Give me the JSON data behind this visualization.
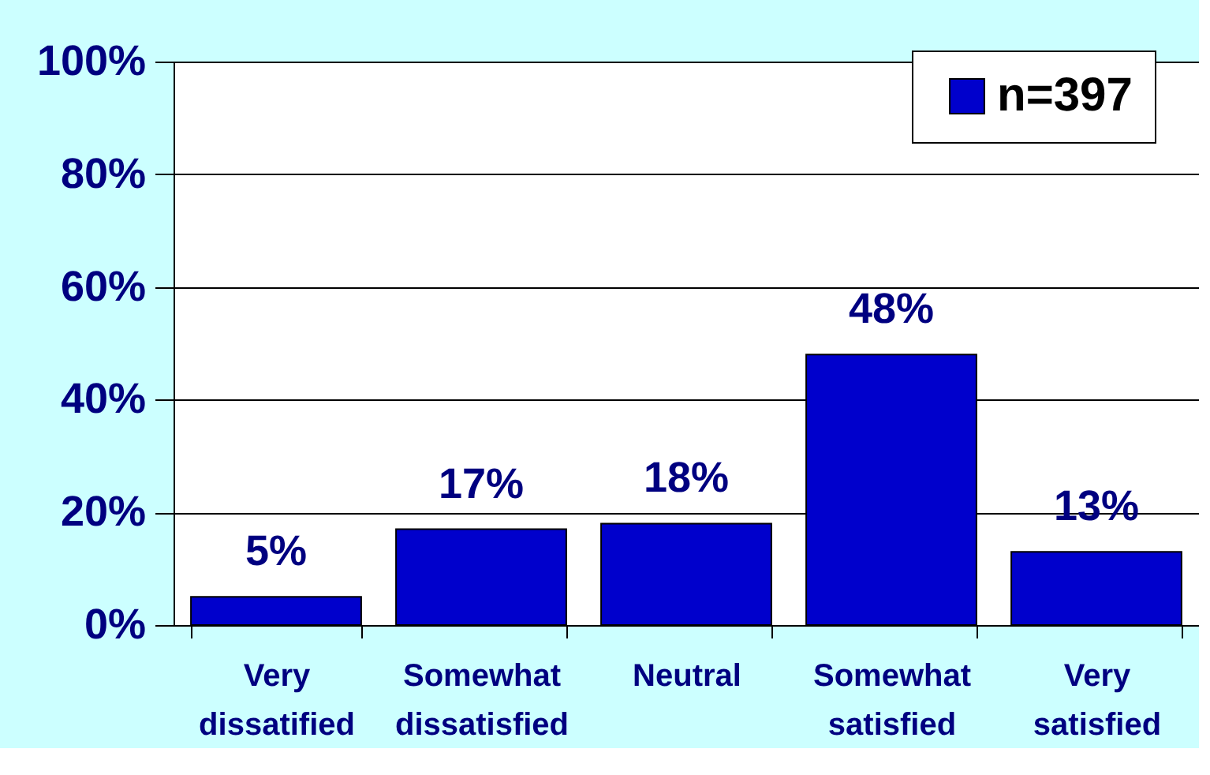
{
  "chart_data": {
    "type": "bar",
    "categories": [
      "Very dissatified",
      "Somewhat dissatisfied",
      "Neutral",
      "Somewhat satisfied",
      "Very satisfied"
    ],
    "series": [
      {
        "name": "n=397",
        "color": "#0000cc",
        "values": [
          5,
          17,
          18,
          48,
          13
        ],
        "value_labels": [
          "5%",
          "17%",
          "18%",
          "48%",
          "13%"
        ]
      }
    ],
    "ylim": [
      0,
      100
    ],
    "yticks": [
      {
        "value": 0,
        "label": "0%"
      },
      {
        "value": 20,
        "label": "20%"
      },
      {
        "value": 40,
        "label": "40%"
      },
      {
        "value": 60,
        "label": "60%"
      },
      {
        "value": 80,
        "label": "80%"
      },
      {
        "value": 100,
        "label": "100%"
      }
    ],
    "grid": "y",
    "legend": "top right"
  }
}
